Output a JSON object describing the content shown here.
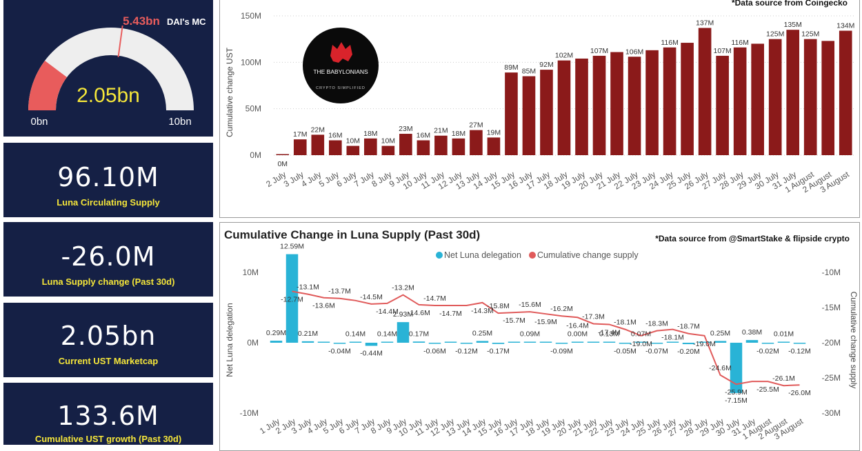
{
  "gauge": {
    "mc_value": "5.43bn",
    "mc_label": "DAI's MC",
    "center_value": "2.05bn",
    "min_label": "0bn",
    "max_label": "10bn",
    "min": 0,
    "max": 10,
    "value": 2.05,
    "marker": 5.43
  },
  "kpis": [
    {
      "value": "96.10M",
      "label": "Luna Circulating Supply"
    },
    {
      "value": "-26.0M",
      "label": "Luna Supply change (Past 30d)"
    },
    {
      "value": "2.05bn",
      "label": "Current UST Marketcap"
    },
    {
      "value": "133.6M",
      "label": "Cumulative UST growth (Past 30d)"
    }
  ],
  "logo": {
    "name": "THE BABYLONIANS",
    "tagline": "CRYPTO SIMPLIFIED"
  },
  "colors": {
    "navy": "#152045",
    "accent_yellow": "#f5e63a",
    "bar_red": "#8b1a1a",
    "bar_cyan": "#29b3d6",
    "line_red": "#e05a5a",
    "gauge_fill": "#e85c5c",
    "gauge_bg": "#eeeeee"
  },
  "chart_data": [
    {
      "type": "bar",
      "source_note": "*Data source from Coingecko",
      "ylabel": "Cumulative change UST",
      "yticks": [
        "0M",
        "50M",
        "100M",
        "150M"
      ],
      "ylim": [
        0,
        150
      ],
      "categories": [
        "2 July",
        "3 July",
        "4 July",
        "5 July",
        "6 July",
        "7 July",
        "8 July",
        "9 July",
        "10 July",
        "11 July",
        "12 July",
        "13 July",
        "14 July",
        "15 July",
        "16 July",
        "17 July",
        "18 July",
        "19 July",
        "20 July",
        "21 July",
        "22 July",
        "23 July",
        "24 July",
        "25 July",
        "26 July",
        "27 July",
        "28 July",
        "29 July",
        "30 July",
        "31 July",
        "1 August",
        "2 August",
        "3 August"
      ],
      "values": [
        0,
        17,
        22,
        16,
        10,
        18,
        10,
        23,
        16,
        21,
        18,
        27,
        19,
        89,
        85,
        92,
        102,
        104,
        107,
        111,
        106,
        113,
        116,
        121,
        137,
        107,
        116,
        120,
        125,
        135,
        125,
        123,
        134
      ],
      "data_labels": [
        "0M",
        "17M",
        "22M",
        "16M",
        "10M",
        "18M",
        "10M",
        "23M",
        "16M",
        "21M",
        "18M",
        "27M",
        "19M",
        "89M",
        "85M",
        "92M",
        "102M",
        "",
        "107M",
        "",
        "106M",
        "",
        "116M",
        "",
        "137M",
        "107M",
        "116M",
        "",
        "125M",
        "135M",
        "125M",
        "",
        "134M"
      ]
    },
    {
      "type": "bar+line",
      "title": "Cumulative Change in Luna Supply (Past 30d)",
      "source_note": "*Data source from @SmartStake & flipside crypto",
      "legend": [
        "Net Luna delegation",
        "Cumulative change supply"
      ],
      "legend_position": "top-center",
      "ylabel_left": "Net Luna delegation",
      "ylabel_right": "Cumulative change supply",
      "yticks_left": [
        "-10M",
        "0M",
        "10M"
      ],
      "ylim_left": [
        -10,
        10
      ],
      "yticks_right": [
        "-10M",
        "-15M",
        "-20M",
        "-25M",
        "-30M"
      ],
      "ylim_right": [
        -30,
        -10
      ],
      "categories": [
        "1 July",
        "2 July",
        "3 July",
        "4 July",
        "5 July",
        "6 July",
        "7 July",
        "8 July",
        "9 July",
        "10 July",
        "11 July",
        "12 July",
        "13 July",
        "14 July",
        "15 July",
        "16 July",
        "17 July",
        "18 July",
        "19 July",
        "20 July",
        "21 July",
        "22 July",
        "23 July",
        "24 July",
        "25 July",
        "26 July",
        "27 July",
        "28 July",
        "29 July",
        "30 July",
        "31 July",
        "1 August",
        "2 August",
        "3 August"
      ],
      "series": [
        {
          "name": "Net Luna delegation",
          "values": [
            0.29,
            12.59,
            0.21,
            0.1,
            -0.04,
            0.14,
            -0.44,
            0.14,
            2.93,
            0.17,
            -0.06,
            0.05,
            -0.12,
            0.25,
            -0.17,
            0.05,
            0.09,
            0.05,
            -0.09,
            0.0,
            0.05,
            0.13,
            -0.05,
            0.07,
            -0.07,
            0.05,
            -0.2,
            0.05,
            0.25,
            -7.15,
            0.38,
            -0.02,
            0.01,
            -0.12
          ],
          "labels": [
            "0.29M",
            "12.59M",
            "0.21M",
            "",
            "-0.04M",
            "0.14M",
            "-0.44M",
            "0.14M",
            "2.93M",
            "0.17M",
            "-0.06M",
            "",
            "-0.12M",
            "0.25M",
            "-0.17M",
            "",
            "0.09M",
            "",
            "-0.09M",
            "0.00M",
            "",
            "0.13M",
            "-0.05M",
            "0.07M",
            "-0.07M",
            "",
            "-0.20M",
            "",
            "0.25M",
            "-7.15M",
            "0.38M",
            "-0.02M",
            "0.01M",
            "-0.12M"
          ]
        },
        {
          "name": "Cumulative change supply",
          "values": [
            null,
            -12.7,
            -13.1,
            -13.6,
            -13.7,
            -14.0,
            -14.5,
            -14.4,
            -13.2,
            -14.6,
            -14.7,
            -14.7,
            -14.7,
            -14.3,
            -15.8,
            -15.7,
            -15.6,
            -15.9,
            -16.2,
            -16.4,
            -17.3,
            -17.4,
            -18.1,
            -19.0,
            -18.3,
            -18.1,
            -18.7,
            -19.0,
            -24.6,
            -25.9,
            -25.5,
            -25.5,
            -26.1,
            -26.0
          ],
          "labels": [
            "",
            "-12.7M",
            "-13.1M",
            "-13.6M",
            "-13.7M",
            "",
            "-14.5M",
            "-14.4M",
            "-13.2M",
            "-14.6M",
            "-14.7M",
            "-14.7M",
            "",
            "-14.3M",
            "-15.8M",
            "-15.7M",
            "-15.6M",
            "-15.9M",
            "-16.2M",
            "-16.4M",
            "-17.3M",
            "-17.4M",
            "-18.1M",
            "-19.0M",
            "-18.3M",
            "-18.1M",
            "-18.7M",
            "-19.0M",
            "-24.6M",
            "-25.9M",
            "",
            "-25.5M",
            "-26.1M",
            "-26.0M"
          ]
        }
      ]
    }
  ]
}
